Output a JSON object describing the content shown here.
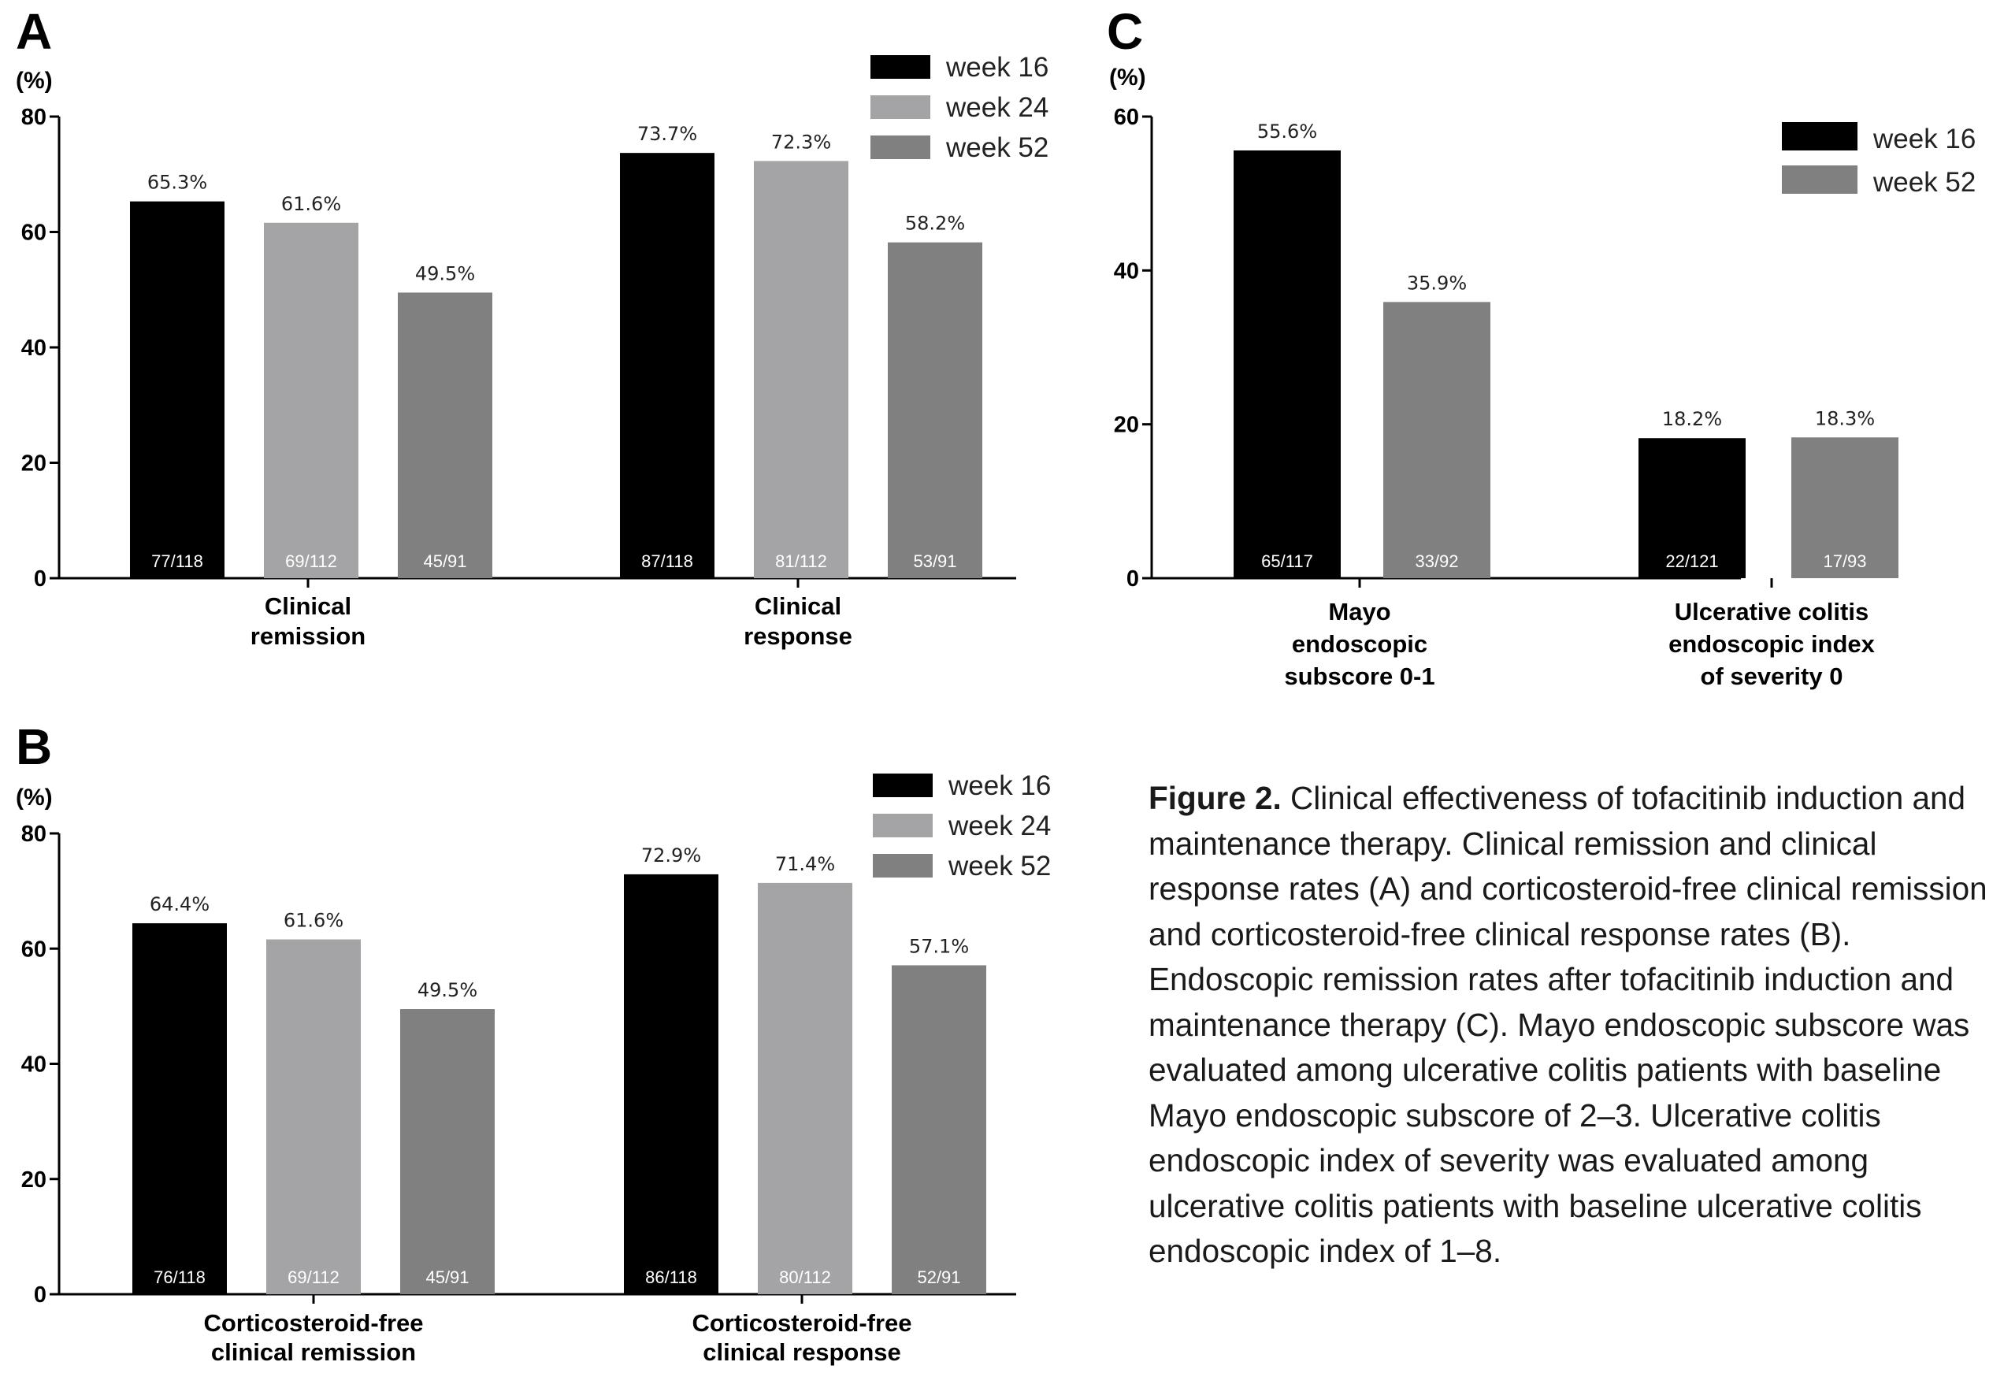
{
  "caption": {
    "label": "Figure 2.",
    "text": " Clinical effectiveness of tofacitinib induction and maintenance therapy. Clinical remission and clinical response rates (A) and corticosteroid-free clinical remission and corticosteroid-free clinical response rates (B). Endoscopic remission rates after tofacitinib induction and maintenance therapy (C). Mayo endoscopic subscore was evaluated among ulcerative colitis patients with baseline Mayo endoscopic subscore of 2–3. Ulcerative colitis endoscopic index of severity was evaluated among ulcerative colitis patients with baseline ulcerative colitis endoscopic index of 1–8."
  },
  "colors": {
    "week16": "#000000",
    "week24": "#a4a4a6",
    "week52": "#808080"
  },
  "chart_data": [
    {
      "panel": "A",
      "type": "bar",
      "ylabel": "(%)",
      "ylim": [
        0,
        80
      ],
      "yticks": [
        0,
        20,
        40,
        60,
        80
      ],
      "grid": false,
      "legend_position": "top-right",
      "categories": [
        [
          "Clinical",
          "remission"
        ],
        [
          "Clinical",
          "response"
        ]
      ],
      "series": [
        {
          "name": "week 16",
          "values": [
            65.3,
            73.7
          ],
          "labels": [
            "65.3%",
            "73.7%"
          ],
          "counts": [
            "77/118",
            "87/118"
          ]
        },
        {
          "name": "week 24",
          "values": [
            61.6,
            72.3
          ],
          "labels": [
            "61.6%",
            "72.3%"
          ],
          "counts": [
            "69/112",
            "81/112"
          ]
        },
        {
          "name": "week 52",
          "values": [
            49.5,
            58.2
          ],
          "labels": [
            "49.5%",
            "58.2%"
          ],
          "counts": [
            "45/91",
            "53/91"
          ]
        }
      ]
    },
    {
      "panel": "B",
      "type": "bar",
      "ylabel": "(%)",
      "ylim": [
        0,
        80
      ],
      "yticks": [
        0,
        20,
        40,
        60,
        80
      ],
      "grid": false,
      "legend_position": "top-right",
      "categories": [
        [
          "Corticosteroid-free",
          "clinical remission"
        ],
        [
          "Corticosteroid-free",
          "clinical response"
        ]
      ],
      "series": [
        {
          "name": "week 16",
          "values": [
            64.4,
            72.9
          ],
          "labels": [
            "64.4%",
            "72.9%"
          ],
          "counts": [
            "76/118",
            "86/118"
          ]
        },
        {
          "name": "week 24",
          "values": [
            61.6,
            71.4
          ],
          "labels": [
            "61.6%",
            "71.4%"
          ],
          "counts": [
            "69/112",
            "80/112"
          ]
        },
        {
          "name": "week 52",
          "values": [
            49.5,
            57.1
          ],
          "labels": [
            "49.5%",
            "57.1%"
          ],
          "counts": [
            "45/91",
            "52/91"
          ]
        }
      ]
    },
    {
      "panel": "C",
      "type": "bar",
      "ylabel": "(%)",
      "ylim": [
        0,
        60
      ],
      "yticks": [
        0,
        20,
        40,
        60
      ],
      "grid": false,
      "legend_position": "top-right",
      "categories": [
        [
          "Mayo",
          "endoscopic",
          "subscore 0-1"
        ],
        [
          "Ulcerative colitis",
          "endoscopic index",
          "of severity 0"
        ]
      ],
      "series": [
        {
          "name": "week 16",
          "values": [
            55.6,
            18.2
          ],
          "labels": [
            "55.6%",
            "18.2%"
          ],
          "counts": [
            "65/117",
            "22/121"
          ]
        },
        {
          "name": "week 52",
          "values": [
            35.9,
            18.3
          ],
          "labels": [
            "35.9%",
            "18.3%"
          ],
          "counts": [
            "33/92",
            "17/93"
          ]
        }
      ]
    }
  ]
}
